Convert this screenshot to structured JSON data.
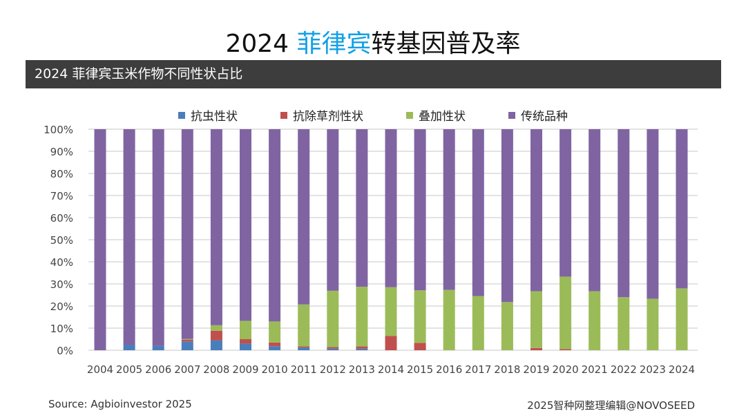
{
  "header": {
    "title_prefix": "2024 ",
    "title_highlight": "菲律宾",
    "title_suffix": "转基因普及率",
    "highlight_color": "#12a0e6"
  },
  "subtitle": "2024 菲律宾玉米作物不同性状占比",
  "footer": {
    "source": "Source: Agbioinvestor 2025",
    "credit": "2025智种网整理编辑@NOVOSEED"
  },
  "chart_data": {
    "type": "bar",
    "stacked": true,
    "categories": [
      "2004",
      "2005",
      "2006",
      "2007",
      "2008",
      "2009",
      "2010",
      "2011",
      "2012",
      "2013",
      "2014",
      "2015",
      "2016",
      "2017",
      "2018",
      "2019",
      "2020",
      "2021",
      "2022",
      "2023",
      "2024"
    ],
    "ylim": [
      0,
      100
    ],
    "yticks": [
      "0%",
      "10%",
      "20%",
      "30%",
      "40%",
      "50%",
      "60%",
      "70%",
      "80%",
      "90%",
      "100%"
    ],
    "grid": true,
    "legend_position": "top",
    "series": [
      {
        "name": "抗虫性状",
        "color": "#4a7ebb",
        "values": [
          0,
          2.5,
          2,
          4,
          4.5,
          3,
          1.8,
          1.2,
          0.7,
          0.7,
          0,
          0,
          0,
          0,
          0,
          0,
          0,
          0,
          0,
          0,
          0
        ]
      },
      {
        "name": "抗除草剂性状",
        "color": "#c0504d",
        "values": [
          0,
          0,
          0,
          0.8,
          4.3,
          2,
          1.7,
          0.5,
          0.7,
          1,
          6.5,
          3.3,
          0,
          0,
          0,
          1,
          0.5,
          0,
          0,
          0,
          0
        ]
      },
      {
        "name": "叠加性状",
        "color": "#9bbb59",
        "values": [
          0,
          0,
          0,
          0.3,
          2.5,
          8.3,
          9.5,
          19,
          25.5,
          27,
          22,
          23.8,
          27.3,
          24.5,
          21.8,
          25.7,
          32.8,
          26.7,
          24,
          23.3,
          28
        ]
      },
      {
        "name": "传统品种",
        "color": "#8064a2",
        "values": [
          100,
          97.5,
          98,
          94.9,
          88.7,
          86.7,
          87,
          79.3,
          73.1,
          71.3,
          71.5,
          72.9,
          72.7,
          75.5,
          78.2,
          73.3,
          66.7,
          73.3,
          76,
          76.7,
          72
        ]
      }
    ]
  }
}
